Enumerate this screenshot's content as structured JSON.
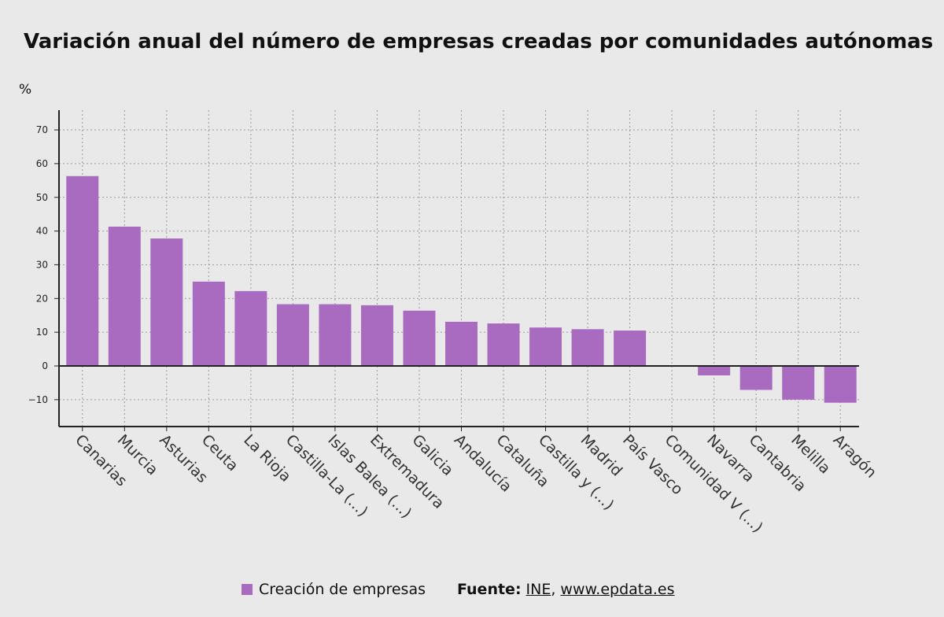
{
  "chart_data": {
    "type": "bar",
    "title": "Variación anual del número de empresas creadas por comunidades autónomas",
    "ylabel": "%",
    "xlabel": "",
    "categories": [
      "Canarias",
      "Murcia",
      "Asturias",
      "Ceuta",
      "La Rioja",
      "Castilla-La (...)",
      "Islas Balea (...)",
      "Extremadura",
      "Galicia",
      "Andalucía",
      "Cataluña",
      "Castilla y (...)",
      "Madrid",
      "País Vasco",
      "Comunidad V (...)",
      "Navarra",
      "Cantabria",
      "Melilla",
      "Aragón"
    ],
    "series": [
      {
        "name": "Creación de empresas",
        "values": [
          56.3,
          41.3,
          37.8,
          25.0,
          22.2,
          18.3,
          18.3,
          18.0,
          16.4,
          13.1,
          12.6,
          11.4,
          10.9,
          10.5,
          0.0,
          -2.8,
          -7.1,
          -10.0,
          -10.9
        ]
      }
    ],
    "ylim": [
      -18,
      76
    ],
    "yticks": [
      -10,
      0,
      10,
      20,
      30,
      40,
      50,
      60,
      70
    ],
    "grid": true,
    "legend_position": "bottom",
    "bar_color": "#a86bbf"
  },
  "legend": {
    "label": "Creación de empresas"
  },
  "source": {
    "label": "Fuente:",
    "ine": "INE",
    "separator": ",",
    "site": "www.epdata.es"
  }
}
